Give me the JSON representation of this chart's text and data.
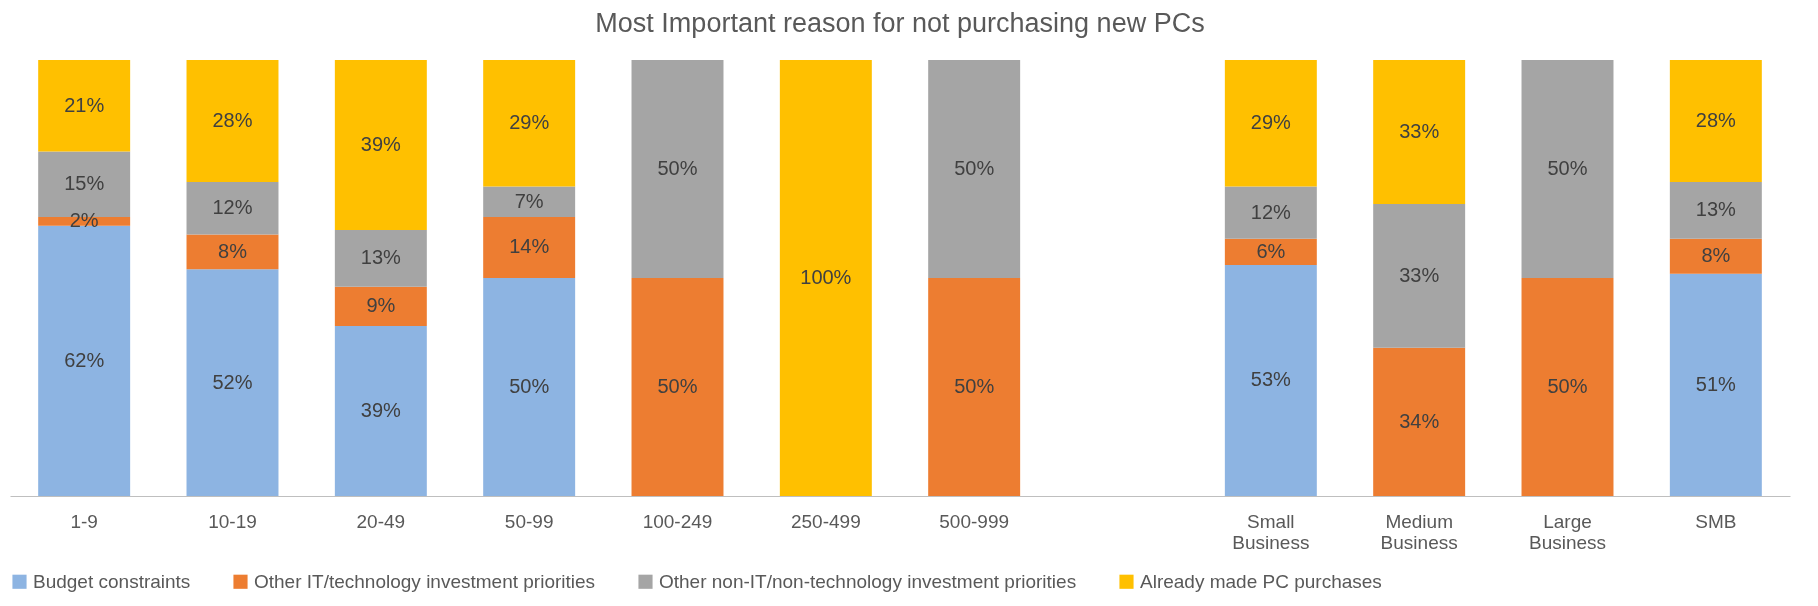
{
  "chart_data": {
    "type": "bar",
    "title": "Most Important reason for not purchasing new PCs",
    "stacked": true,
    "legend": "bottom",
    "categories": [
      "1-9",
      "10-19",
      "20-49",
      "50-99",
      "100-249",
      "250-499",
      "500-999",
      null,
      "Small Business",
      "Medium Business",
      "Large Business",
      "SMB"
    ],
    "series": [
      {
        "name": "Budget constraints",
        "color": "#8db4e2",
        "values": [
          62,
          52,
          39,
          50,
          null,
          null,
          null,
          null,
          53,
          null,
          null,
          51
        ],
        "value_labels": [
          "62%",
          "52%",
          "39%",
          "50%",
          null,
          null,
          null,
          null,
          "53%",
          null,
          null,
          "51%"
        ]
      },
      {
        "name": "Other IT/technology investment priorities",
        "color": "#ed7d31",
        "values": [
          2,
          8,
          9,
          14,
          50,
          null,
          50,
          null,
          6,
          34,
          50,
          8
        ],
        "value_labels": [
          "2%",
          "8%",
          "9%",
          "14%",
          "50%",
          null,
          "50%",
          null,
          "6%",
          "34%",
          "50%",
          "8%"
        ]
      },
      {
        "name": "Other non-IT/non-technology investment priorities",
        "color": "#a5a5a5",
        "values": [
          15,
          12,
          13,
          7,
          50,
          null,
          50,
          null,
          12,
          33,
          50,
          13
        ],
        "value_labels": [
          "15%",
          "12%",
          "13%",
          "7%",
          "50%",
          null,
          "50%",
          null,
          "12%",
          "33%",
          "50%",
          "13%"
        ]
      },
      {
        "name": "Already made PC purchases",
        "color": "#ffc000",
        "values": [
          21,
          28,
          39,
          29,
          null,
          100,
          null,
          null,
          29,
          33,
          null,
          28
        ],
        "value_labels": [
          "21%",
          "28%",
          "39%",
          "29%",
          null,
          "100%",
          null,
          null,
          "29%",
          "33%",
          null,
          "28%"
        ]
      }
    ]
  }
}
